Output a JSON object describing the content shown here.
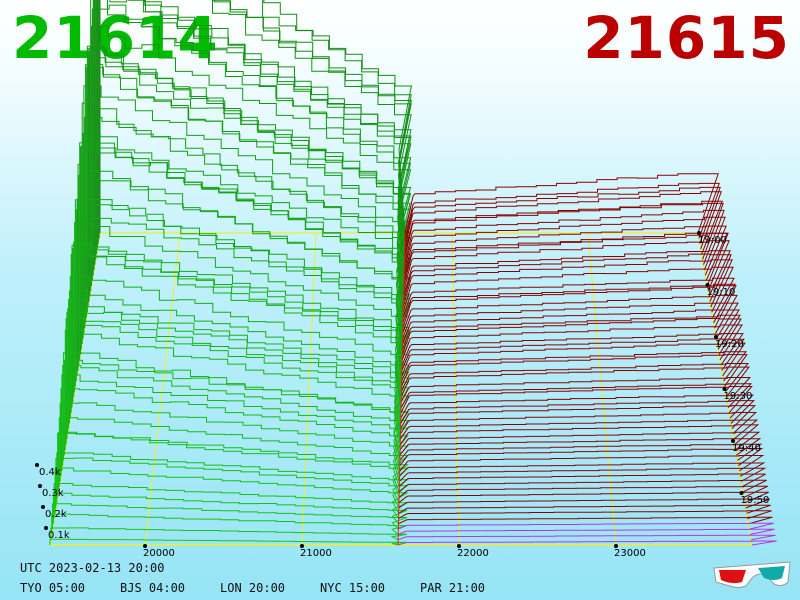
{
  "header": {
    "left_value": "21614",
    "right_value": "21615",
    "left_color": "#00bb00",
    "right_color": "#bb0000"
  },
  "chart_data": {
    "type": "3d-depth-waterfall",
    "x_axis": {
      "ticks": [
        20000,
        21000,
        22000,
        23000
      ],
      "tick_labels": [
        "20000",
        "21000",
        "22000",
        "23000"
      ]
    },
    "z_axis": {
      "ticks": [
        0.1,
        0.2,
        0.3,
        0.4
      ],
      "tick_labels": [
        "0.1k",
        "0.2k",
        "0.3k",
        "0.4k"
      ]
    },
    "time_axis": {
      "tick_labels": [
        "19:00",
        "19:10",
        "19:20",
        "19:30",
        "19:40",
        "19:50"
      ]
    },
    "series": [
      {
        "side": "bid",
        "color": "#11bb11"
      },
      {
        "side": "ask",
        "color": "#990000"
      }
    ],
    "mid_price": 21614.5,
    "grid_color": "#eeee33"
  },
  "footer": {
    "utc": "UTC 2023-02-13 20:00",
    "cities": [
      "TYO 05:00",
      "BJS 04:00",
      "LON 20:00",
      "NYC 15:00",
      "PAR 21:00"
    ]
  },
  "icons": {
    "glasses": "3d-glasses-icon"
  }
}
